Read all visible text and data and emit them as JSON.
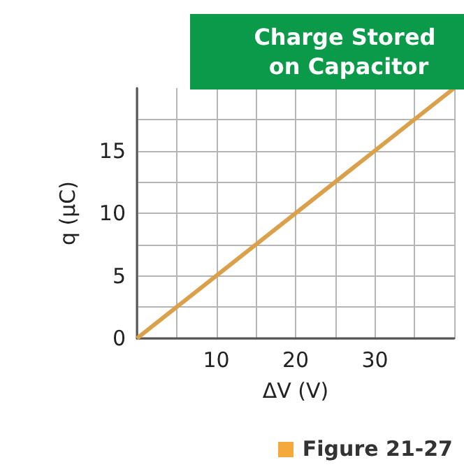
{
  "chart_data": {
    "type": "line",
    "title": "Charge Stored on Capacitor",
    "xlabel": "ΔV (V)",
    "ylabel": "q (μC)",
    "x": [
      0,
      40
    ],
    "series": [
      {
        "color": "#dba14a",
        "values": [
          0,
          20
        ]
      }
    ],
    "xlim": [
      0,
      40
    ],
    "ylim": [
      0,
      20
    ],
    "xticks": [
      {
        "value": 0,
        "label": null
      },
      {
        "value": 5,
        "label": null
      },
      10,
      {
        "value": 15,
        "label": null
      },
      20,
      {
        "value": 25,
        "label": null
      },
      30,
      {
        "value": 35,
        "label": null
      },
      {
        "value": 40,
        "label": null
      }
    ],
    "yticks": [
      0,
      {
        "value": 2.5,
        "label": null
      },
      5,
      {
        "value": 7.5,
        "label": null
      },
      10,
      {
        "value": 12.5,
        "label": null
      },
      15,
      {
        "value": 17.5,
        "label": null
      }
    ],
    "grid": true,
    "marker": "none",
    "line_style": "solid",
    "annotations": [
      "Figure 21-27"
    ]
  }
}
